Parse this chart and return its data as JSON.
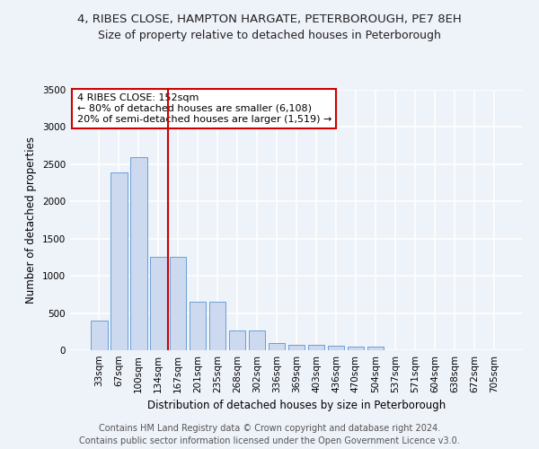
{
  "title1": "4, RIBES CLOSE, HAMPTON HARGATE, PETERBOROUGH, PE7 8EH",
  "title2": "Size of property relative to detached houses in Peterborough",
  "xlabel": "Distribution of detached houses by size in Peterborough",
  "ylabel": "Number of detached properties",
  "categories": [
    "33sqm",
    "67sqm",
    "100sqm",
    "134sqm",
    "167sqm",
    "201sqm",
    "235sqm",
    "268sqm",
    "302sqm",
    "336sqm",
    "369sqm",
    "403sqm",
    "436sqm",
    "470sqm",
    "504sqm",
    "537sqm",
    "571sqm",
    "604sqm",
    "638sqm",
    "672sqm",
    "705sqm"
  ],
  "values": [
    400,
    2390,
    2600,
    1250,
    1250,
    650,
    650,
    270,
    270,
    100,
    70,
    70,
    60,
    50,
    50,
    0,
    0,
    0,
    0,
    0,
    0
  ],
  "bar_color": "#ccd9ef",
  "bar_edge_color": "#6a9fd8",
  "vline_x_index": 3.5,
  "vline_color": "#cc0000",
  "annotation_text": "4 RIBES CLOSE: 152sqm\n← 80% of detached houses are smaller (6,108)\n20% of semi-detached houses are larger (1,519) →",
  "annotation_box_color": "#ffffff",
  "annotation_box_edge_color": "#cc0000",
  "ylim": [
    0,
    3500
  ],
  "yticks": [
    0,
    500,
    1000,
    1500,
    2000,
    2500,
    3000,
    3500
  ],
  "footer1": "Contains HM Land Registry data © Crown copyright and database right 2024.",
  "footer2": "Contains public sector information licensed under the Open Government Licence v3.0.",
  "background_color": "#eef2f9",
  "plot_bg_color": "#eef2f9",
  "grid_color": "#ffffff",
  "title1_fontsize": 9.5,
  "title2_fontsize": 9,
  "xlabel_fontsize": 8.5,
  "ylabel_fontsize": 8.5,
  "tick_fontsize": 7.5,
  "footer_fontsize": 7,
  "annotation_fontsize": 8
}
